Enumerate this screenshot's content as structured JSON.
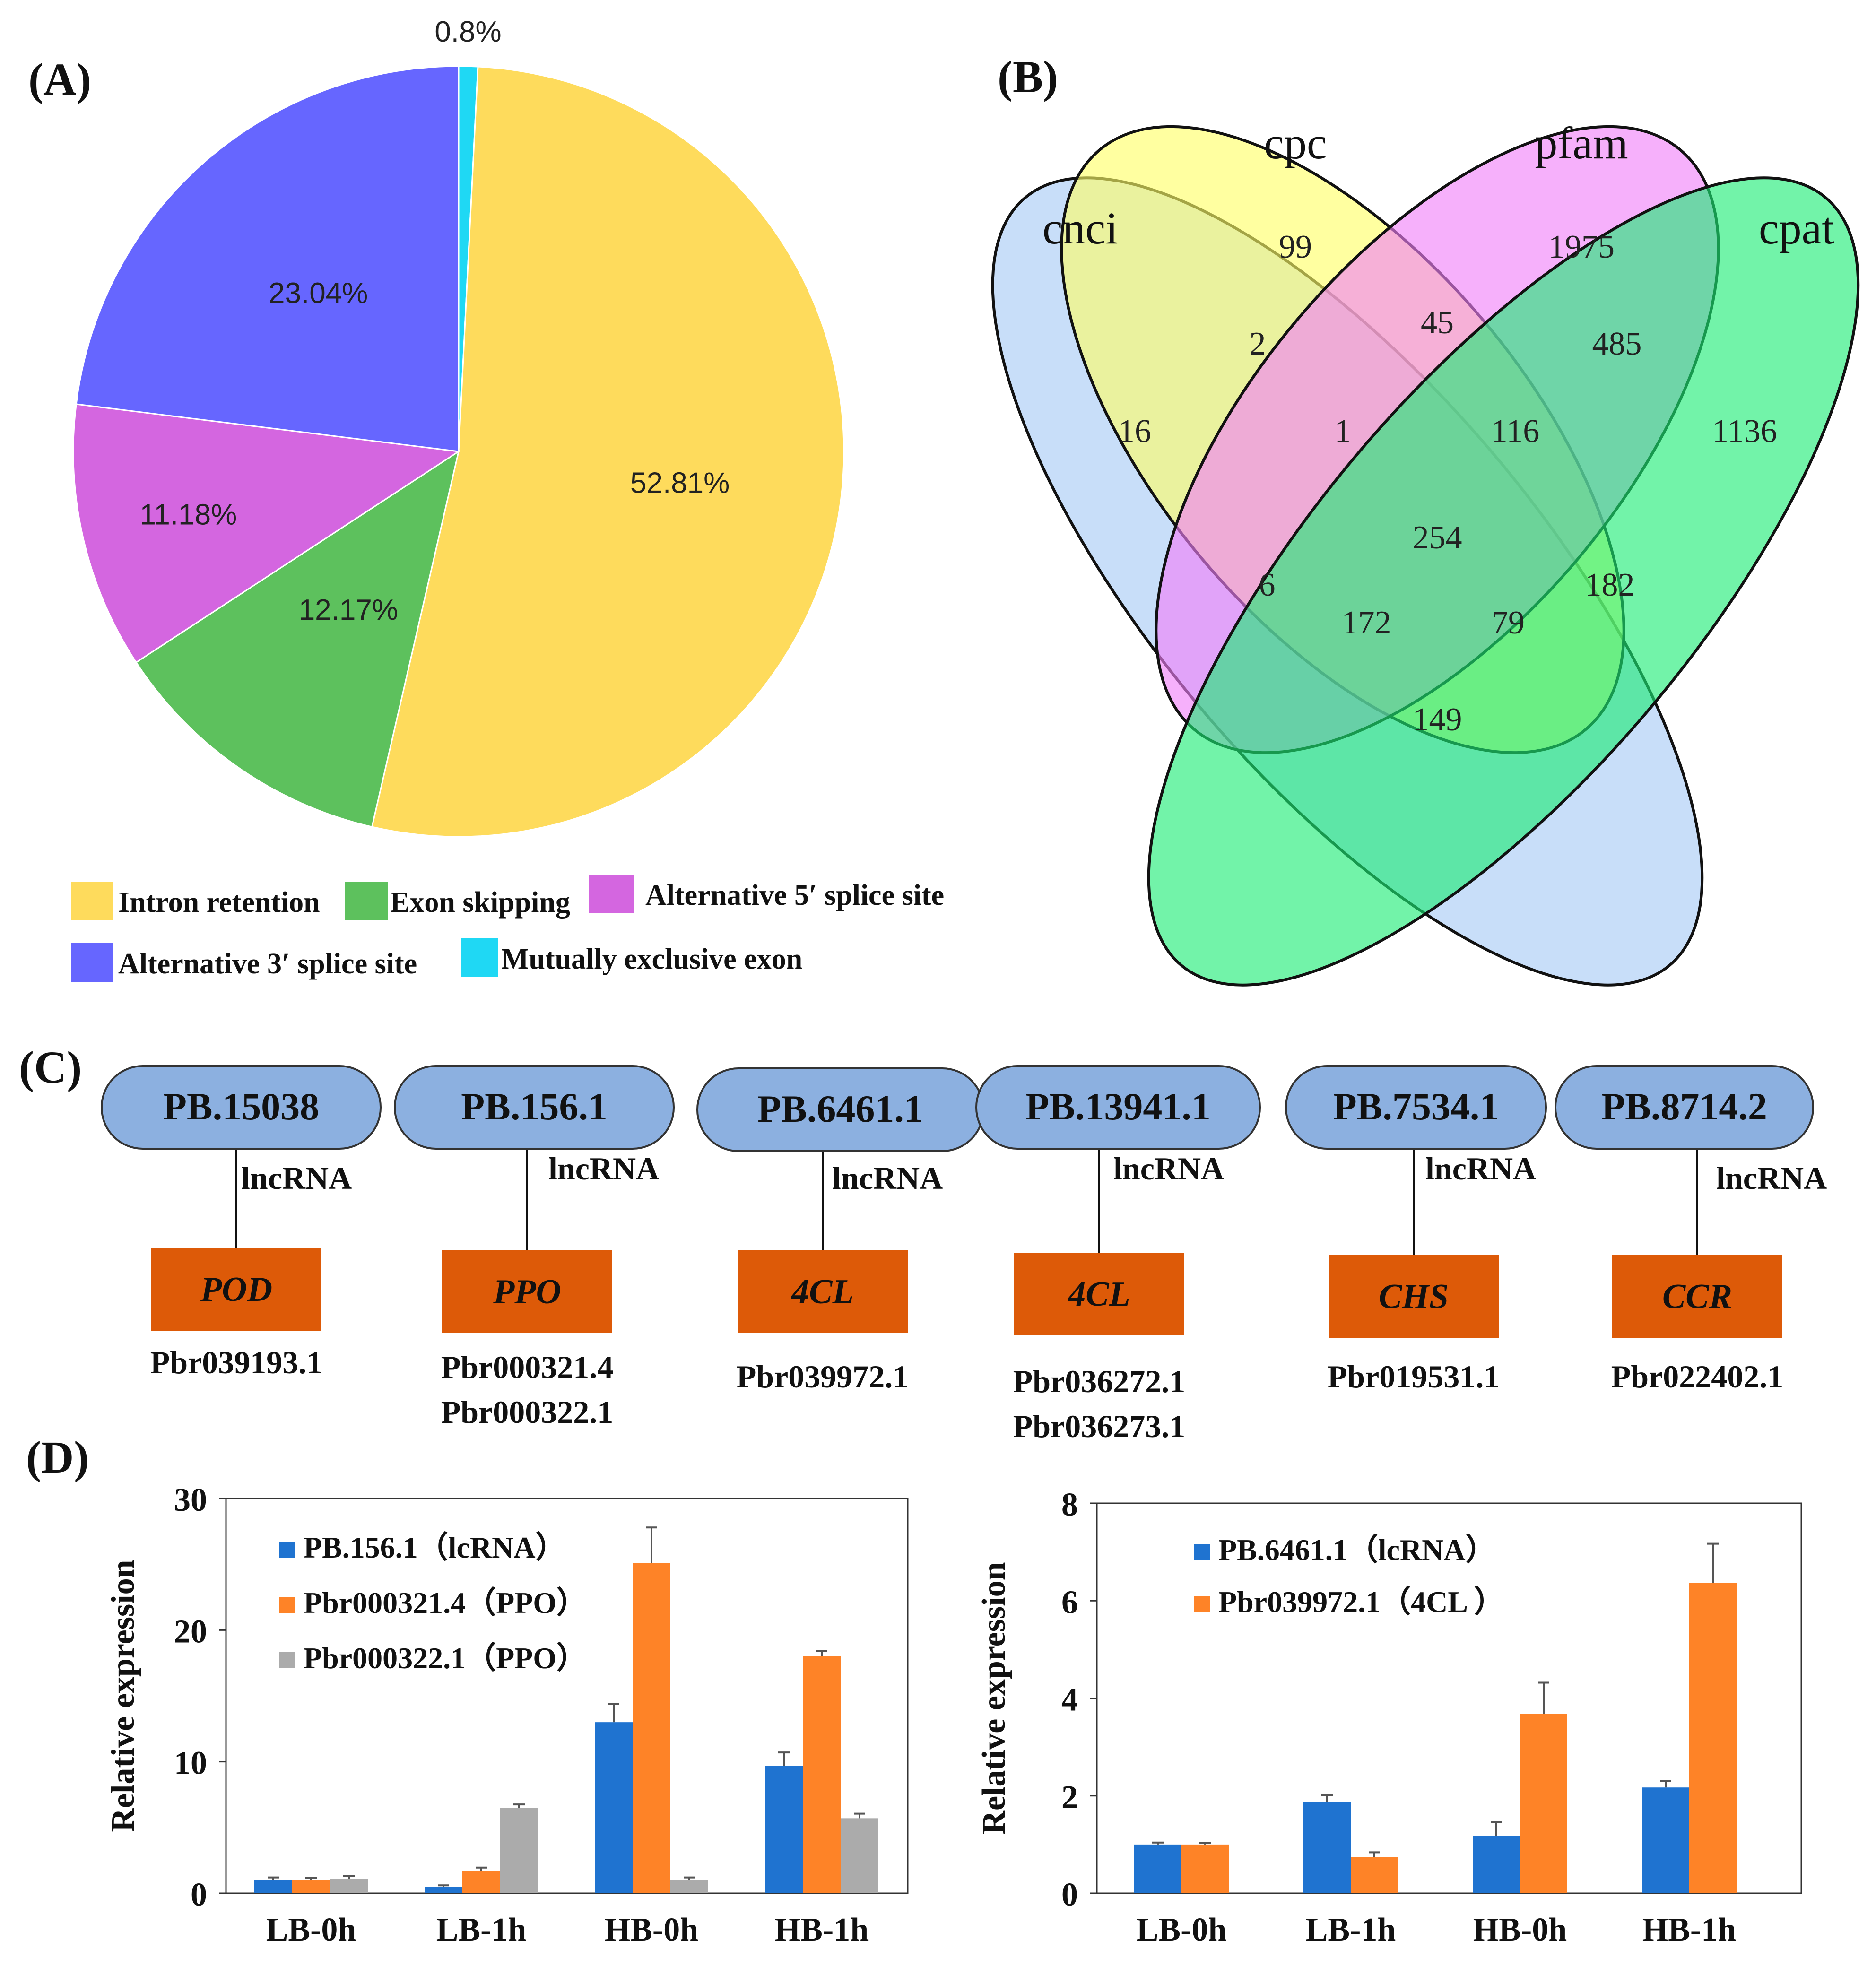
{
  "panel_labels": {
    "a": "(A)",
    "b": "(B)",
    "c": "(C)",
    "d": "(D)"
  },
  "colors": {
    "intron": "#FEDB5C",
    "exon": "#5DC15D",
    "alt5": "#D466E0",
    "alt3": "#6666FF",
    "mutual": "#1FD8F4",
    "cnci": "#A6CAF6",
    "cpc": "#FFFF66",
    "pfam": "#F080F8",
    "cpat": "#1CEB75",
    "lnc_fill": "#8CB0E0",
    "gene_fill": "#DD5A08",
    "blue": "#1F73D0",
    "orange": "#FE8327",
    "gray": "#ABABAB"
  },
  "chart_data": [
    {
      "type": "pie",
      "panel": "(A)",
      "slices": [
        {
          "key": "intron",
          "label": "Intron retention",
          "value": 52.81,
          "display": "52.81%"
        },
        {
          "key": "exon",
          "label": "Exon skipping",
          "value": 12.17,
          "display": "12.17%"
        },
        {
          "key": "alt5",
          "label": "Alternative 5′ splice site",
          "value": 11.18,
          "display": "11.18%"
        },
        {
          "key": "alt3",
          "label": "Alternative 3′ splice site",
          "value": 23.04,
          "display": "23.04%"
        },
        {
          "key": "mutual",
          "label": "Mutually exclusive exon",
          "value": 0.8,
          "display": "0.8%"
        }
      ]
    },
    {
      "type": "venn",
      "panel": "(B)",
      "sets": [
        "cnci",
        "cpc",
        "pfam",
        "cpat"
      ],
      "regions": [
        {
          "sets": "cnci",
          "value": 16
        },
        {
          "sets": "cpc",
          "value": 99
        },
        {
          "sets": "pfam",
          "value": 1975
        },
        {
          "sets": "cpat",
          "value": 1136
        },
        {
          "sets": "cnci&cpc",
          "value": 2
        },
        {
          "sets": "cpc&pfam",
          "value": 45
        },
        {
          "sets": "pfam&cpat",
          "value": 485
        },
        {
          "sets": "cnci&cpc&pfam",
          "value": 1
        },
        {
          "sets": "cpc&pfam&cpat",
          "value": 116
        },
        {
          "sets": "cnci&cpc&pfam&cpat",
          "value": 254
        },
        {
          "sets": "cnci&pfam",
          "value": 6
        },
        {
          "sets": "cpc&cpat",
          "value": 182
        },
        {
          "sets": "cnci&pfam&cpat",
          "value": 172
        },
        {
          "sets": "cnci&cpc&cpat",
          "value": 79
        },
        {
          "sets": "cnci&cpat",
          "value": 149
        }
      ]
    },
    {
      "type": "bar",
      "panel": "(D) left",
      "ylabel": "Relative expression",
      "ylim": [
        0,
        30
      ],
      "yticks": [
        0,
        10,
        20,
        30
      ],
      "categories": [
        "LB-0h",
        "LB-1h",
        "HB-0h",
        "HB-1h"
      ],
      "series": [
        {
          "name": "PB.156.1（lcRNA）",
          "color": "#1F73D0",
          "values": [
            1.0,
            0.5,
            13.0,
            9.7
          ],
          "errors": [
            0.2,
            0.1,
            1.4,
            1.0
          ]
        },
        {
          "name": "Pbr000321.4（PPO）",
          "color": "#FE8327",
          "values": [
            1.0,
            1.7,
            25.1,
            18.0
          ],
          "errors": [
            0.15,
            0.25,
            2.7,
            0.4
          ]
        },
        {
          "name": "Pbr000322.1（PPO）",
          "color": "#ABABAB",
          "values": [
            1.1,
            6.5,
            1.0,
            5.7
          ],
          "errors": [
            0.2,
            0.25,
            0.2,
            0.35
          ]
        }
      ]
    },
    {
      "type": "bar",
      "panel": "(D) right",
      "ylabel": "Relative expression",
      "ylim": [
        0,
        8
      ],
      "yticks": [
        0,
        2,
        4,
        6,
        8
      ],
      "categories": [
        "LB-0h",
        "LB-1h",
        "HB-0h",
        "HB-1h"
      ],
      "series": [
        {
          "name": "PB.6461.1（lcRNA）",
          "color": "#1F73D0",
          "values": [
            1.0,
            1.88,
            1.18,
            2.17
          ],
          "errors": [
            0.04,
            0.13,
            0.28,
            0.13
          ]
        },
        {
          "name": "Pbr039972.1（4CL ）",
          "color": "#FE8327",
          "values": [
            1.0,
            0.74,
            3.68,
            6.37
          ],
          "errors": [
            0.03,
            0.1,
            0.64,
            0.8
          ]
        }
      ]
    }
  ],
  "network": {
    "edge_label": "lncRNA",
    "pairs": [
      {
        "lnc": "PB.15038",
        "gene": "POD",
        "ids": [
          "Pbr039193.1"
        ]
      },
      {
        "lnc": "PB.156.1",
        "gene": "PPO",
        "ids": [
          "Pbr000321.4",
          "Pbr000322.1"
        ]
      },
      {
        "lnc": "PB.6461.1",
        "gene": "4CL",
        "ids": [
          "Pbr039972.1"
        ]
      },
      {
        "lnc": "PB.13941.1",
        "gene": "4CL",
        "ids": [
          "Pbr036272.1",
          "Pbr036273.1"
        ]
      },
      {
        "lnc": "PB.7534.1",
        "gene": "CHS",
        "ids": [
          "Pbr019531.1"
        ]
      },
      {
        "lnc": "PB.8714.2",
        "gene": "CCR",
        "ids": [
          "Pbr022402.1"
        ]
      }
    ]
  }
}
